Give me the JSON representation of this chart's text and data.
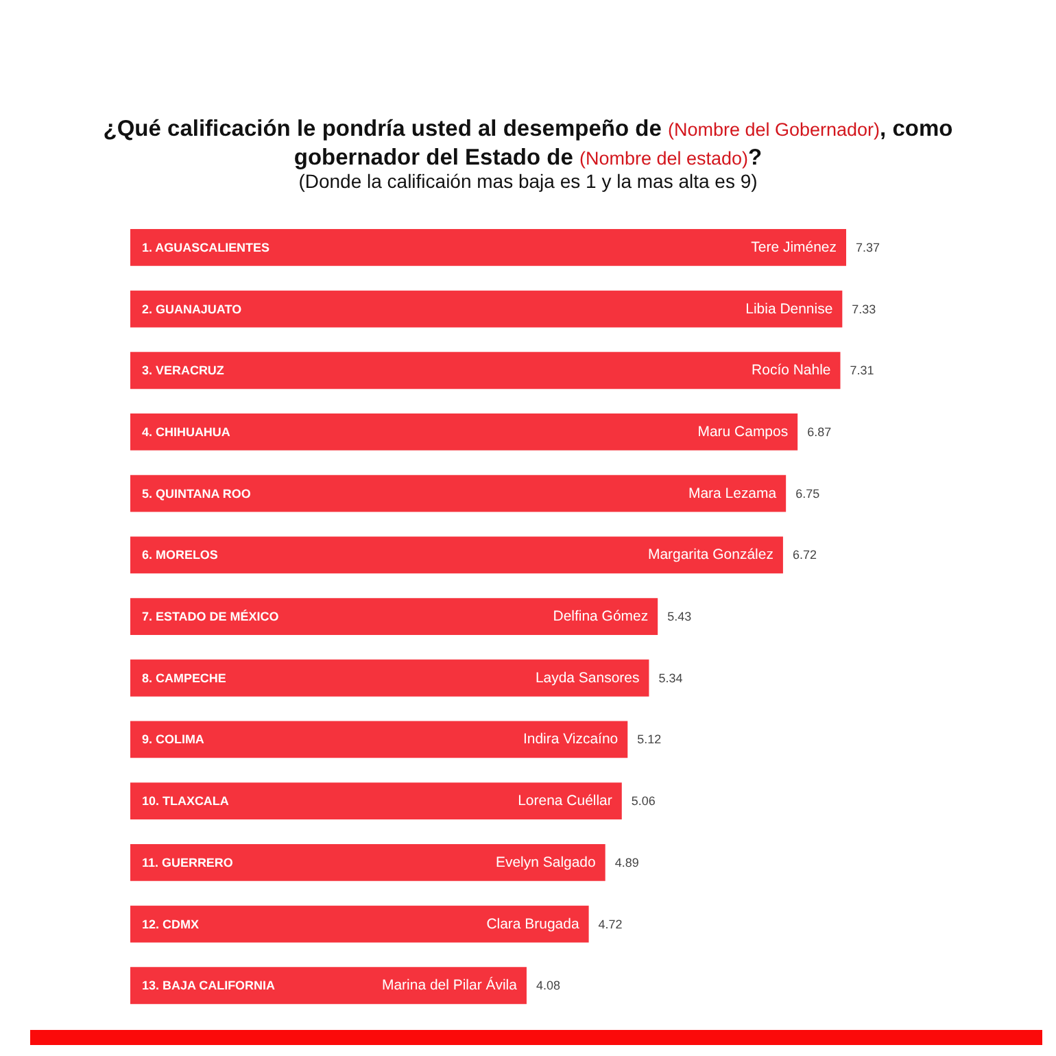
{
  "chart_data": {
    "type": "bar",
    "orientation": "horizontal",
    "title": "¿Qué calificación le pondría usted al desempeño de (Nombre del Gobernador), como gobernador del Estado de (Nombre del estado)?",
    "subtitle": "(Donde la calificaión mas baja es 1 y la mas alta es 9)",
    "categories": [
      "1. AGUASCALIENTES",
      "2. GUANAJUATO",
      "3. VERACRUZ",
      "4. CHIHUAHUA",
      "5. QUINTANA ROO",
      "6. MORELOS",
      "7. ESTADO DE MÉXICO",
      "8. CAMPECHE",
      "9. COLIMA",
      "10. TLAXCALA",
      "11. GUERRERO",
      "12. CDMX",
      "13. BAJA CALIFORNIA"
    ],
    "values": [
      7.37,
      7.33,
      7.31,
      6.87,
      6.75,
      6.72,
      5.43,
      5.34,
      5.12,
      5.06,
      4.89,
      4.72,
      4.08
    ],
    "color": "#f5333d",
    "data_labels": true,
    "tick_labels": "y",
    "annotations": [
      {
        "text": "Tere Jiménez",
        "x": 7.37,
        "y": "1. AGUASCALIENTES"
      },
      {
        "text": "Libia Dennise",
        "x": 7.33,
        "y": "2. GUANAJUATO"
      },
      {
        "text": "Rocío Nahle",
        "x": 7.31,
        "y": "3. VERACRUZ"
      },
      {
        "text": "Maru Campos",
        "x": 6.87,
        "y": "4. CHIHUAHUA"
      },
      {
        "text": "Mara Lezama",
        "x": 6.75,
        "y": "5. QUINTANA ROO"
      },
      {
        "text": "Margarita González",
        "x": 6.72,
        "y": "6. MORELOS"
      },
      {
        "text": "Delfina Gómez",
        "x": 5.43,
        "y": "7. ESTADO DE MÉXICO"
      },
      {
        "text": "Layda Sansores",
        "x": 5.34,
        "y": "8. CAMPECHE"
      },
      {
        "text": "Indira Vizcaíno",
        "x": 5.12,
        "y": "9. COLIMA"
      },
      {
        "text": "Lorena Cuéllar",
        "x": 5.06,
        "y": "10. TLAXCALA"
      },
      {
        "text": "Evelyn Salgado",
        "x": 4.89,
        "y": "11. GUERRERO"
      },
      {
        "text": "Clara Brugada",
        "x": 4.72,
        "y": "12. CDMX"
      },
      {
        "text": "Marina del Pilar Ávila",
        "x": 4.08,
        "y": "13. BAJA CALIFORNIA"
      }
    ]
  }
}
